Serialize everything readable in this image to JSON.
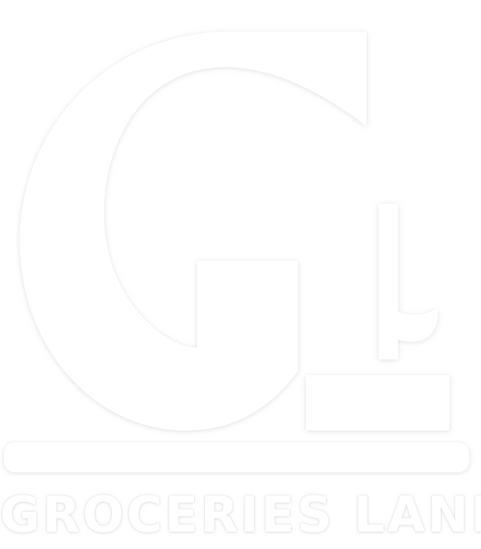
{
  "logo": {
    "mark_icon": "grocery-land-logo-mark",
    "wordmark": "GROCERIES LAND",
    "colors": {
      "foreground": "#ffffff",
      "background": "#ffffff",
      "shadow": "#d8d8d8"
    }
  }
}
